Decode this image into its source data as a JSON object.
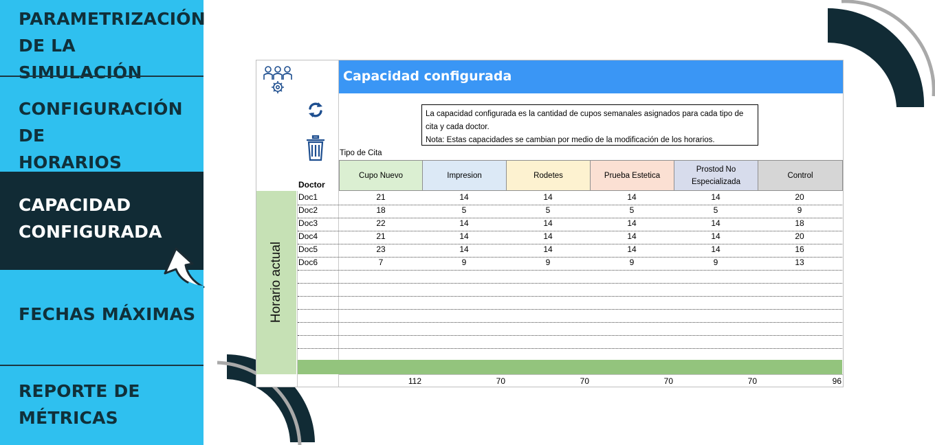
{
  "sidebar": {
    "items": [
      {
        "line1": "PARAMETRIZACIÓN",
        "line2": "DE LA SIMULACIÓN"
      },
      {
        "line1": "CONFIGURACIÓN DE",
        "line2": "HORARIOS"
      },
      {
        "line1": "CAPACIDAD",
        "line2": "CONFIGURADA"
      },
      {
        "line1": "FECHAS MÁXIMAS",
        "line2": ""
      },
      {
        "line1": "REPORTE DE",
        "line2": "MÉTRICAS"
      }
    ],
    "active_index": 2
  },
  "sheet": {
    "title": "Capacidad configurada",
    "note_line1": "La capacidad configurada es la cantidad de cupos semanales asignados para cada tipo de",
    "note_line2": "cita y cada doctor.",
    "note_line3": "Nota: Estas capacidades se cambian por medio de la modificación de los horarios.",
    "tipo_label": "Tipo de Cita",
    "doctor_label": "Doctor",
    "band_label": "Horario actual",
    "columns": [
      {
        "label_line1": "Cupo Nuevo",
        "label_line2": "",
        "color": "#dbefd2"
      },
      {
        "label_line1": "Impresion",
        "label_line2": "",
        "color": "#dce9f6"
      },
      {
        "label_line1": "Rodetes",
        "label_line2": "",
        "color": "#fdf2d0"
      },
      {
        "label_line1": "Prueba Estetica",
        "label_line2": "",
        "color": "#fbe0d3"
      },
      {
        "label_line1": "Prostod No",
        "label_line2": "Especializada",
        "color": "#d7dcec"
      },
      {
        "label_line1": "Control",
        "label_line2": "",
        "color": "#d6d6d6"
      }
    ],
    "rows": [
      {
        "doctor": "Doc1",
        "values": [
          "21",
          "14",
          "14",
          "14",
          "14",
          "20"
        ]
      },
      {
        "doctor": "Doc2",
        "values": [
          "18",
          "5",
          "5",
          "5",
          "5",
          "9"
        ]
      },
      {
        "doctor": "Doc3",
        "values": [
          "22",
          "14",
          "14",
          "14",
          "14",
          "18"
        ]
      },
      {
        "doctor": "Doc4",
        "values": [
          "21",
          "14",
          "14",
          "14",
          "14",
          "20"
        ]
      },
      {
        "doctor": "Doc5",
        "values": [
          "23",
          "14",
          "14",
          "14",
          "14",
          "16"
        ]
      },
      {
        "doctor": "Doc6",
        "values": [
          "7",
          "9",
          "9",
          "9",
          "9",
          "13"
        ]
      }
    ],
    "totals": [
      "112",
      "70",
      "70",
      "70",
      "70",
      "96"
    ]
  },
  "icons": {
    "team": "team-gear-icon",
    "refresh": "refresh-icon",
    "trash": "trash-icon",
    "cursor": "cursor-arrow-icon"
  },
  "colors": {
    "sidebar_bg": "#2fc0ef",
    "sidebar_active": "#112b35",
    "title_bar": "#3a96f5",
    "band": "#c6e1b5",
    "green_row": "#93c47d"
  }
}
